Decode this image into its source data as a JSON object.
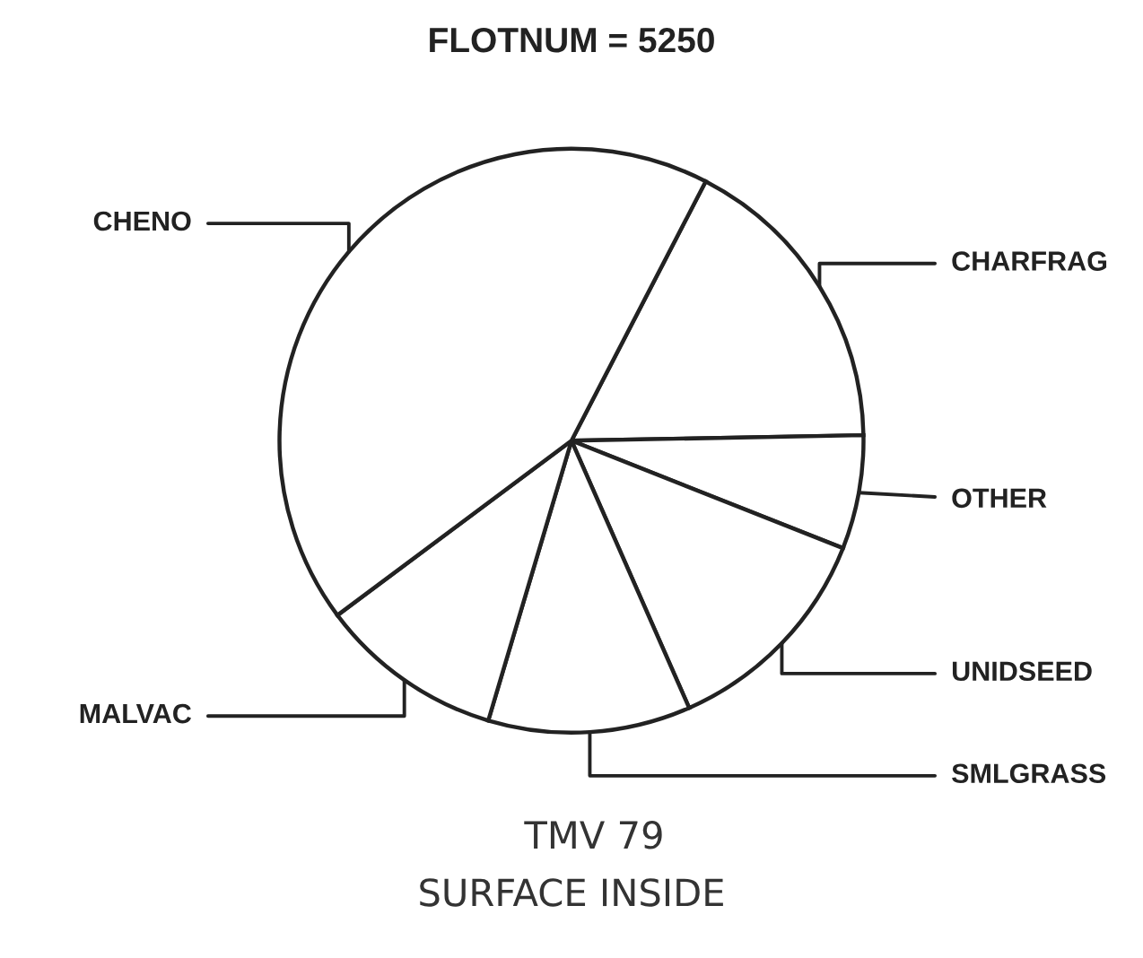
{
  "chart_data": {
    "type": "pie",
    "title": "FLOTNUM = 5250",
    "categories": [
      "CHARFRAG",
      "OTHER",
      "UNIDSEED",
      "SMLGRASS",
      "MALVAC",
      "CHENO"
    ],
    "values": [
      17.1,
      6.3,
      12.4,
      11.2,
      10.2,
      42.8
    ],
    "colors": [
      "#ffffff",
      "#ffffff",
      "#ffffff",
      "#ffffff",
      "#ffffff",
      "#ffffff"
    ],
    "annotations": [
      "TMV 79",
      "SURFACE INSIDE"
    ]
  }
}
